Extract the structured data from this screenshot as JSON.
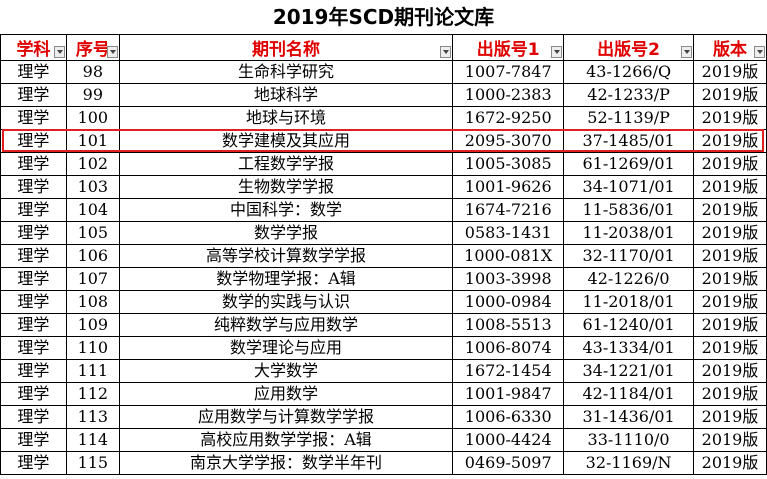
{
  "title": "2019年SCD期刊论文库",
  "headers": [
    "学科",
    "序号",
    "期刊名称",
    "出版号1",
    "出版号2",
    "版本"
  ],
  "rows": [
    [
      "理学",
      "98",
      "生命科学研究",
      "1007-7847",
      "43-1266/Q",
      "2019版"
    ],
    [
      "理学",
      "99",
      "地球科学",
      "1000-2383",
      "42-1233/P",
      "2019版"
    ],
    [
      "理学",
      "100",
      "地球与环境",
      "1672-9250",
      "52-1139/P",
      "2019版"
    ],
    [
      "理学",
      "101",
      "数学建模及其应用",
      "2095-3070",
      "37-1485/01",
      "2019版"
    ],
    [
      "理学",
      "102",
      "工程数学学报",
      "1005-3085",
      "61-1269/01",
      "2019版"
    ],
    [
      "理学",
      "103",
      "生物数学学报",
      "1001-9626",
      "34-1071/01",
      "2019版"
    ],
    [
      "理学",
      "104",
      "中国科学：数学",
      "1674-7216",
      "11-5836/01",
      "2019版"
    ],
    [
      "理学",
      "105",
      "数学学报",
      "0583-1431",
      "11-2038/01",
      "2019版"
    ],
    [
      "理学",
      "106",
      "高等学校计算数学学报",
      "1000-081X",
      "32-1170/01",
      "2019版"
    ],
    [
      "理学",
      "107",
      "数学物理学报：A辑",
      "1003-3998",
      "42-1226/0",
      "2019版"
    ],
    [
      "理学",
      "108",
      "数学的实践与认识",
      "1000-0984",
      "11-2018/01",
      "2019版"
    ],
    [
      "理学",
      "109",
      "纯粹数学与应用数学",
      "1008-5513",
      "61-1240/01",
      "2019版"
    ],
    [
      "理学",
      "110",
      "数学理论与应用",
      "1006-8074",
      "43-1334/01",
      "2019版"
    ],
    [
      "理学",
      "111",
      "大学数学",
      "1672-1454",
      "34-1221/01",
      "2019版"
    ],
    [
      "理学",
      "112",
      "应用数学",
      "1001-9847",
      "42-1184/01",
      "2019版"
    ],
    [
      "理学",
      "113",
      "应用数学与计算数学学报",
      "1006-6330",
      "31-1436/01",
      "2019版"
    ],
    [
      "理学",
      "114",
      "高校应用数学学报：A辑",
      "1000-4424",
      "33-1110/0",
      "2019版"
    ],
    [
      "理学",
      "115",
      "南京大学学报：数学半年刊",
      "0469-5097",
      "32-1169/N",
      "2019版"
    ]
  ]
}
